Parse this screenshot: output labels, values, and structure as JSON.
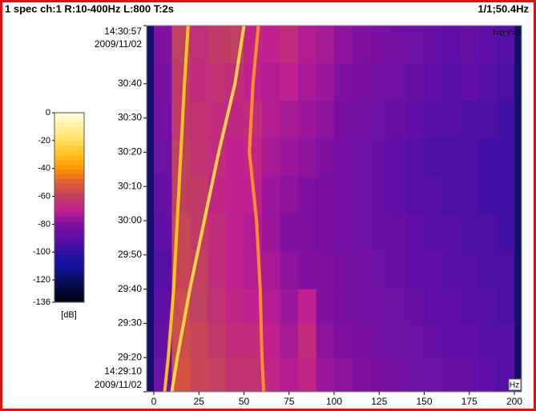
{
  "chart_data": {
    "type": "spectrogram",
    "title": "1 spec ch:1 R:10-400Hz L:800 T:2s",
    "status": "1/1;50.4Hz",
    "cursor": "f=0;Y=0",
    "x_unit": "Hz",
    "xlim": [
      -4,
      204
    ],
    "xticks": [
      0,
      25,
      50,
      75,
      100,
      125,
      150,
      175,
      200
    ],
    "ylim": [
      10,
      117
    ],
    "yticks": [
      {
        "value": 100,
        "label": "30:40"
      },
      {
        "value": 90,
        "label": "30:30"
      },
      {
        "value": 80,
        "label": "30:20"
      },
      {
        "value": 70,
        "label": "30:10"
      },
      {
        "value": 60,
        "label": "30:00"
      },
      {
        "value": 50,
        "label": "29:50"
      },
      {
        "value": 40,
        "label": "29:40"
      },
      {
        "value": 30,
        "label": "29:30"
      },
      {
        "value": 20,
        "label": "29:20"
      }
    ],
    "y_top": {
      "value": 117,
      "time": "14:30:57",
      "date": "2009/11/02"
    },
    "y_bottom": {
      "value": 10,
      "time": "14:29:10",
      "date": "2009/11/02"
    },
    "x_bins": [
      0,
      10,
      20,
      30,
      40,
      50,
      60,
      70,
      80,
      90,
      100,
      110,
      120,
      130,
      140,
      150,
      160,
      170,
      180,
      190,
      200
    ],
    "y_bins": [
      117,
      106,
      95,
      84,
      73,
      62,
      51,
      40,
      30,
      20,
      10
    ],
    "values": [
      [
        -80,
        -60,
        -65,
        -62,
        -60,
        -68,
        -70,
        -66,
        -72,
        -74,
        -78,
        -80,
        -82,
        -84,
        -86,
        -88,
        -90,
        -88,
        -90,
        -92
      ],
      [
        -82,
        -62,
        -66,
        -64,
        -66,
        -70,
        -72,
        -70,
        -74,
        -76,
        -80,
        -82,
        -84,
        -85,
        -88,
        -90,
        -92,
        -90,
        -92,
        -94
      ],
      [
        -84,
        -62,
        -64,
        -66,
        -68,
        -66,
        -72,
        -74,
        -76,
        -78,
        -82,
        -84,
        -86,
        -88,
        -90,
        -92,
        -92,
        -94,
        -94,
        -96
      ],
      [
        -86,
        -60,
        -64,
        -66,
        -70,
        -68,
        -74,
        -76,
        -78,
        -80,
        -84,
        -86,
        -88,
        -90,
        -92,
        -94,
        -94,
        -94,
        -96,
        -96
      ],
      [
        -88,
        -60,
        -62,
        -68,
        -70,
        -70,
        -76,
        -78,
        -80,
        -82,
        -84,
        -86,
        -88,
        -90,
        -92,
        -92,
        -94,
        -94,
        -96,
        -96
      ],
      [
        -90,
        -58,
        -62,
        -66,
        -70,
        -72,
        -76,
        -80,
        -80,
        -82,
        -84,
        -86,
        -88,
        -88,
        -90,
        -92,
        -92,
        -94,
        -94,
        -96
      ],
      [
        -92,
        -58,
        -60,
        -66,
        -70,
        -72,
        -74,
        -78,
        -80,
        -80,
        -82,
        -84,
        -86,
        -88,
        -90,
        -90,
        -92,
        -92,
        -94,
        -94
      ],
      [
        -90,
        -56,
        -60,
        -64,
        -68,
        -70,
        -72,
        -76,
        -70,
        -80,
        -82,
        -84,
        -84,
        -86,
        -88,
        -90,
        -90,
        -92,
        -92,
        -94
      ],
      [
        -88,
        -56,
        -58,
        -62,
        -66,
        -66,
        -70,
        -74,
        -66,
        -78,
        -80,
        -82,
        -84,
        -86,
        -86,
        -88,
        -90,
        -90,
        -92,
        -92
      ],
      [
        -86,
        -54,
        -58,
        -60,
        -64,
        -64,
        -68,
        -72,
        -68,
        -76,
        -78,
        -80,
        -82,
        -84,
        -86,
        -86,
        -88,
        -88,
        -90,
        -92
      ]
    ],
    "ridges": [
      {
        "color": "#ffd21a",
        "x": [
          19,
          17,
          15,
          13,
          11,
          8,
          6
        ],
        "y": [
          117,
          100,
          80,
          60,
          40,
          20,
          10
        ]
      },
      {
        "color": "#ffe24a",
        "x": [
          50,
          45,
          36,
          28,
          20,
          13,
          10
        ],
        "y": [
          117,
          100,
          80,
          60,
          40,
          20,
          10
        ]
      },
      {
        "color": "#ff9a20",
        "x": [
          58,
          55,
          53,
          57,
          59,
          60,
          61
        ],
        "y": [
          117,
          100,
          80,
          60,
          40,
          20,
          10
        ]
      }
    ],
    "clim": [
      -136,
      0
    ],
    "cticks": [
      0,
      -20,
      -40,
      -60,
      -80,
      -100,
      -120,
      -136
    ],
    "c_unit": "[dB]",
    "colorscale": [
      [
        0,
        "#ffffe0"
      ],
      [
        -10,
        "#fff0a0"
      ],
      [
        -20,
        "#ffe060"
      ],
      [
        -30,
        "#ffc020"
      ],
      [
        -40,
        "#ff9800"
      ],
      [
        -50,
        "#e06030"
      ],
      [
        -60,
        "#c04060"
      ],
      [
        -70,
        "#c02090"
      ],
      [
        -80,
        "#8010a0"
      ],
      [
        -90,
        "#6010a8"
      ],
      [
        -100,
        "#3010a0"
      ],
      [
        -110,
        "#1010a0"
      ],
      [
        -120,
        "#081060"
      ],
      [
        -136,
        "#000010"
      ]
    ]
  }
}
